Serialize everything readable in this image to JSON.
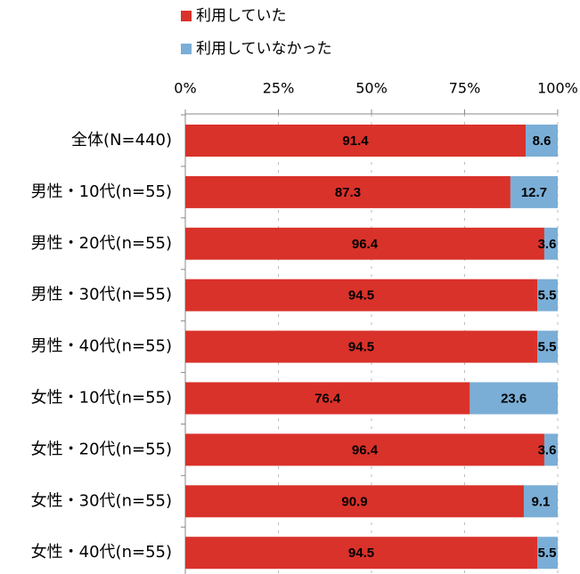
{
  "chart_data": {
    "type": "stacked-bar-horizontal",
    "categories": [
      "全体(N=440)",
      "男性・10代(n=55)",
      "男性・20代(n=55)",
      "男性・30代(n=55)",
      "男性・40代(n=55)",
      "女性・10代(n=55)",
      "女性・20代(n=55)",
      "女性・30代(n=55)",
      "女性・40代(n=55)"
    ],
    "series": [
      {
        "name": "利用していた",
        "color": "#d9322a",
        "values": [
          91.4,
          87.3,
          96.4,
          94.5,
          94.5,
          76.4,
          96.4,
          90.9,
          94.5
        ]
      },
      {
        "name": "利用していなかった",
        "color": "#7aaed6",
        "values": [
          8.6,
          12.7,
          3.6,
          5.5,
          5.5,
          23.6,
          3.6,
          9.1,
          5.5
        ]
      }
    ],
    "xlim": [
      0,
      100
    ],
    "xticks": [
      {
        "value": 0,
        "label": "0%"
      },
      {
        "value": 25,
        "label": "25%"
      },
      {
        "value": 50,
        "label": "50%"
      },
      {
        "value": 75,
        "label": "75%"
      },
      {
        "value": 100,
        "label": "100%"
      }
    ],
    "grid": true,
    "legend": "top"
  }
}
